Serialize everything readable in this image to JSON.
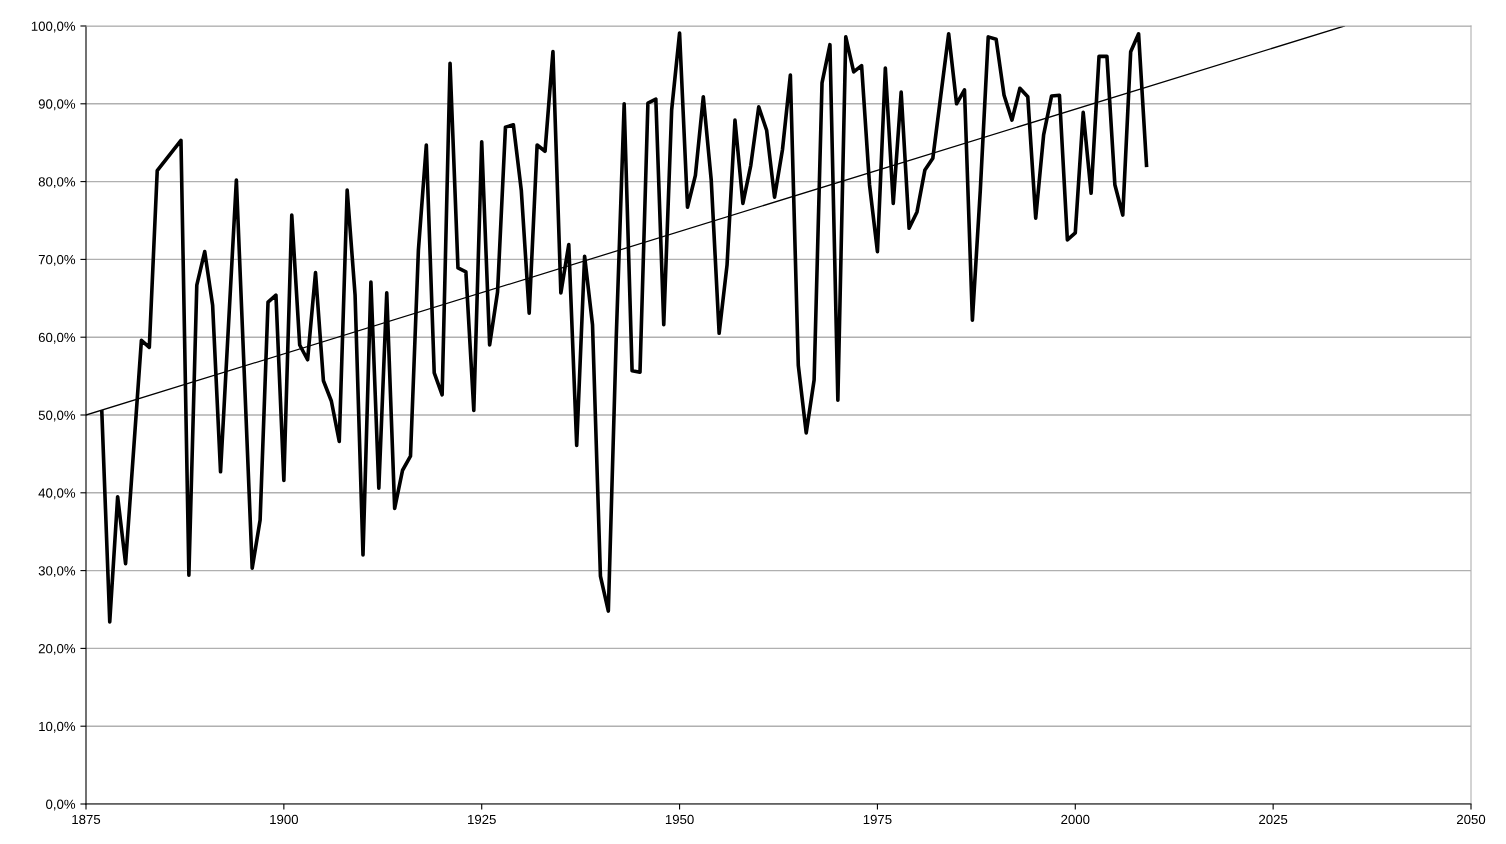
{
  "chart_data": {
    "type": "line",
    "xlim": [
      1875,
      2050
    ],
    "xticks": [
      1875,
      1900,
      1925,
      1950,
      1975,
      2000,
      2025,
      2050
    ],
    "ylim": [
      0,
      100
    ],
    "yticks": [
      {
        "value": 0,
        "label": "0,0%"
      },
      {
        "value": 10,
        "label": "10,0%"
      },
      {
        "value": 20,
        "label": "20,0%"
      },
      {
        "value": 30,
        "label": "30,0%"
      },
      {
        "value": 40,
        "label": "40,0%"
      },
      {
        "value": 50,
        "label": "50,0%"
      },
      {
        "value": 60,
        "label": "60,0%"
      },
      {
        "value": 70,
        "label": "70,0%"
      },
      {
        "value": 80,
        "label": "80,0%"
      },
      {
        "value": 90,
        "label": "90,0%"
      },
      {
        "value": 100,
        "label": "100,0%"
      }
    ],
    "grid": "y",
    "marker": "none",
    "series": [
      {
        "color": "#000000",
        "line_style": "solid",
        "x": [
          1877,
          1878,
          1879,
          1880,
          1882,
          1883,
          1884,
          1887,
          1888,
          1889,
          1890,
          1891,
          1892,
          1894,
          1896,
          1897,
          1898,
          1899,
          1900,
          1901,
          1902,
          1903,
          1904,
          1905,
          1906,
          1907,
          1908,
          1909,
          1910,
          1911,
          1912,
          1913,
          1914,
          1915,
          1916,
          1917,
          1918,
          1919,
          1920,
          1921,
          1922,
          1923,
          1924,
          1925,
          1926,
          1927,
          1928,
          1929,
          1930,
          1931,
          1932,
          1933,
          1934,
          1935,
          1936,
          1937,
          1938,
          1939,
          1940,
          1941,
          1942,
          1943,
          1944,
          1945,
          1946,
          1947,
          1948,
          1949,
          1950,
          1951,
          1952,
          1953,
          1954,
          1955,
          1956,
          1957,
          1958,
          1959,
          1960,
          1961,
          1962,
          1963,
          1964,
          1965,
          1966,
          1967,
          1968,
          1969,
          1970,
          1971,
          1972,
          1973,
          1974,
          1975,
          1976,
          1977,
          1978,
          1979,
          1980,
          1981,
          1982,
          1983,
          1984,
          1985,
          1986,
          1987,
          1988,
          1989,
          1990,
          1991,
          1992,
          1993,
          1994,
          1995,
          1996,
          1997,
          1998,
          1999,
          2000,
          2001,
          2002,
          2003,
          2004,
          2005,
          2006,
          2007,
          2008,
          2009
        ],
        "values": [
          50.4,
          23.4,
          39.5,
          30.9,
          59.6,
          58.7,
          81.4,
          85.3,
          29.4,
          66.7,
          71.0,
          64.1,
          42.7,
          80.2,
          30.3,
          36.5,
          64.5,
          65.4,
          41.6,
          75.7,
          59.0,
          57.1,
          68.3,
          54.4,
          51.8,
          46.6,
          78.9,
          65.4,
          32.0,
          67.1,
          40.6,
          65.7,
          38.0,
          42.9,
          44.7,
          71.2,
          84.7,
          55.4,
          52.6,
          95.2,
          68.9,
          68.4,
          50.6,
          85.1,
          59.0,
          65.8,
          87.0,
          87.3,
          78.9,
          63.1,
          84.7,
          83.9,
          96.7,
          65.7,
          71.9,
          46.1,
          70.4,
          61.6,
          29.3,
          24.8,
          60.0,
          90.0,
          55.7,
          55.5,
          90.1,
          90.6,
          61.6,
          89.2,
          99.1,
          76.7,
          80.8,
          90.9,
          80.2,
          60.5,
          69.3,
          87.9,
          77.2,
          82.1,
          89.6,
          86.6,
          78.0,
          84.1,
          93.7,
          56.4,
          47.7,
          54.5,
          92.7,
          97.6,
          51.9,
          98.6,
          94.1,
          94.9,
          79.6,
          71.0,
          94.6,
          77.2,
          91.5,
          74.0,
          76.1,
          81.5,
          83.0,
          91.0,
          99.0,
          90.0,
          91.8,
          62.2,
          78.9,
          98.6,
          98.3,
          91.1,
          87.9,
          92.0,
          90.9,
          75.3,
          86.0,
          91.0,
          91.1,
          72.5,
          73.4,
          88.9,
          78.5,
          96.1,
          96.1,
          79.6,
          75.7,
          96.7,
          99.0,
          82.1
        ]
      },
      {
        "color": "#000000",
        "line_style": "solid",
        "x": [
          1875,
          2034
        ],
        "values": [
          50,
          100
        ]
      }
    ]
  }
}
